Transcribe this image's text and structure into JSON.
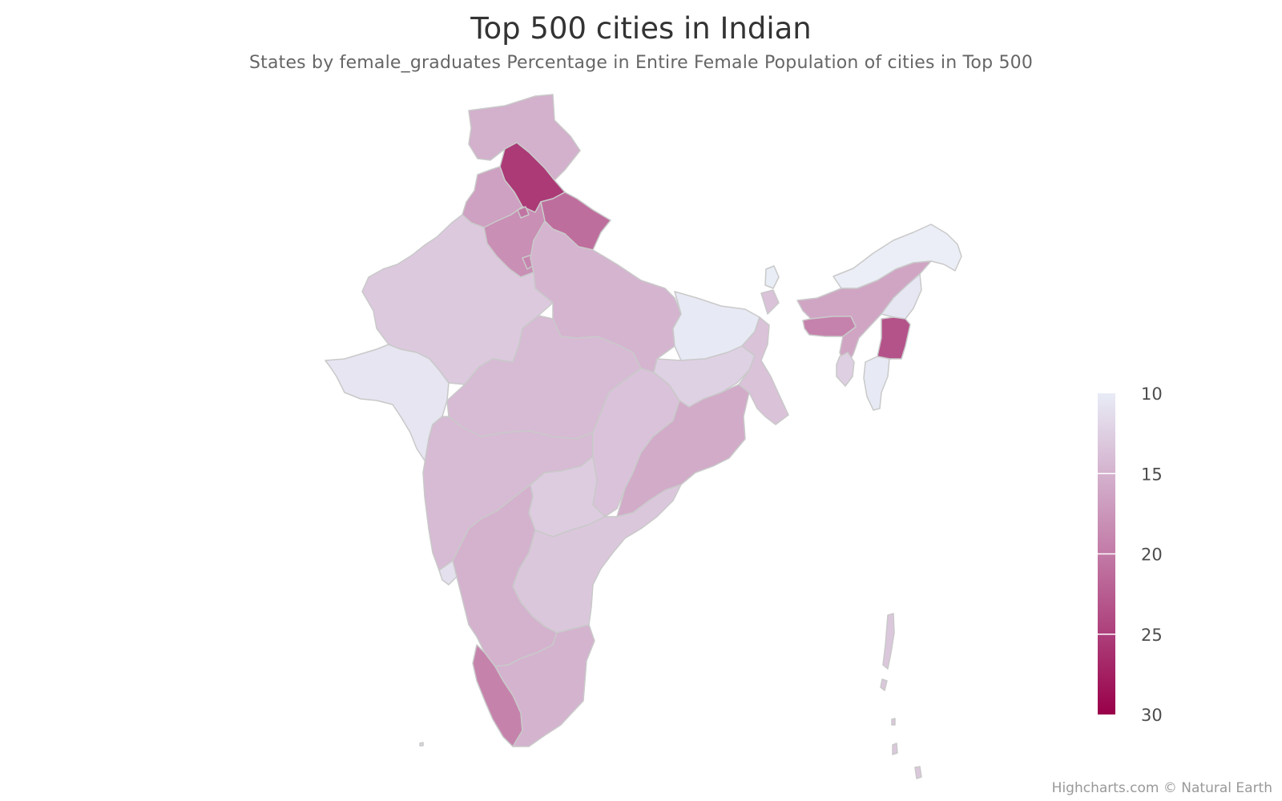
{
  "chart_data": {
    "type": "choropleth",
    "title": "Top 500 cities in Indian",
    "subtitle": "States by female_graduates Percentage in Entire Female Population of cities in Top 500",
    "colorAxis": {
      "min": 10,
      "max": 30,
      "ticks": [
        "10",
        "15",
        "20",
        "25",
        "30"
      ],
      "minColor": "#e8ecf6",
      "maxColor": "#990049",
      "placement": "right-vertical"
    },
    "states": [
      {
        "name": "Jammu and Kashmir",
        "value": 15.2
      },
      {
        "name": "Himachal Pradesh",
        "value": 25.4
      },
      {
        "name": "Punjab",
        "value": 16.6
      },
      {
        "name": "Uttarakhand",
        "value": 21.0
      },
      {
        "name": "Haryana",
        "value": 18.1
      },
      {
        "name": "Chandigarh",
        "value": 20.5
      },
      {
        "name": "Delhi",
        "value": 19.0
      },
      {
        "name": "Rajasthan",
        "value": 13.0
      },
      {
        "name": "Uttar Pradesh",
        "value": 14.8
      },
      {
        "name": "Bihar",
        "value": 10.3
      },
      {
        "name": "Gujarat",
        "value": 10.6
      },
      {
        "name": "Madhya Pradesh",
        "value": 14.2
      },
      {
        "name": "Chhattisgarh",
        "value": 13.5
      },
      {
        "name": "Jharkhand",
        "value": 12.3
      },
      {
        "name": "West Bengal",
        "value": 13.6
      },
      {
        "name": "Odisha",
        "value": 15.6
      },
      {
        "name": "Maharashtra",
        "value": 14.3
      },
      {
        "name": "Telangana",
        "value": 12.8
      },
      {
        "name": "Andhra Pradesh",
        "value": 13.2
      },
      {
        "name": "Karnataka",
        "value": 15.0
      },
      {
        "name": "Goa",
        "value": 11.0
      },
      {
        "name": "Kerala",
        "value": 19.2
      },
      {
        "name": "Tamil Nadu",
        "value": 14.9
      },
      {
        "name": "Sikkim",
        "value": 9.5
      },
      {
        "name": "Arunachal Pradesh",
        "value": 8.8
      },
      {
        "name": "Assam",
        "value": 16.2
      },
      {
        "name": "Meghalaya",
        "value": 19.3
      },
      {
        "name": "Nagaland",
        "value": 10.4
      },
      {
        "name": "Manipur",
        "value": 23.3
      },
      {
        "name": "Mizoram",
        "value": 10.2
      },
      {
        "name": "Tripura",
        "value": 12.5
      },
      {
        "name": "Andaman and Nicobar",
        "value": 13.2
      },
      {
        "name": "Lakshadweep",
        "value": 12.0
      }
    ]
  },
  "credits": "Highcharts.com © Natural Earth"
}
